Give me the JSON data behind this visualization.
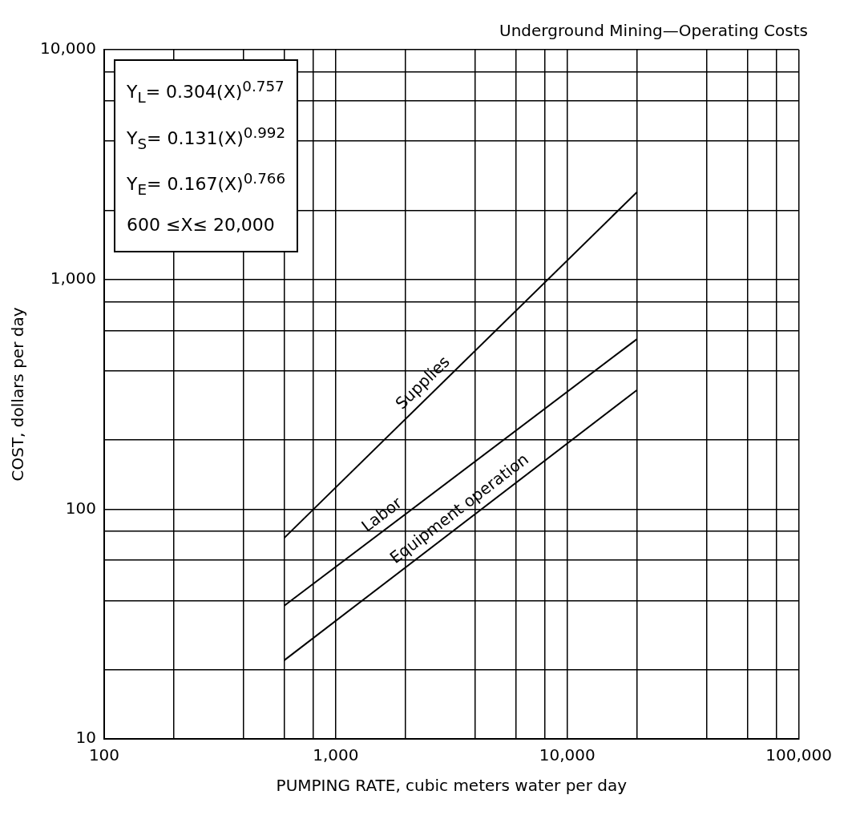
{
  "chart_data": {
    "type": "line",
    "title": "Underground Mining—Operating Costs",
    "xlabel": "PUMPING RATE, cubic meters water per day",
    "ylabel": "COST, dollars per day",
    "x": [
      600,
      20000
    ],
    "series": [
      {
        "name": "Supplies",
        "color": "#000000",
        "values": [
          75,
          2400
        ]
      },
      {
        "name": "Labor",
        "color": "#000000",
        "values": [
          38,
          550
        ]
      },
      {
        "name": "Equipment operation",
        "color": "#000000",
        "values": [
          22,
          330
        ]
      }
    ],
    "log": "xy",
    "xlim": [
      100,
      100000
    ],
    "ylim": [
      10,
      10000
    ],
    "xticks": [
      100,
      {
        "value": 200,
        "label": null
      },
      {
        "value": 400,
        "label": null
      },
      {
        "value": 600,
        "label": null
      },
      {
        "value": 800,
        "label": null
      },
      {
        "value": 1000,
        "label": "1,000"
      },
      {
        "value": 2000,
        "label": null
      },
      {
        "value": 4000,
        "label": null
      },
      {
        "value": 6000,
        "label": null
      },
      {
        "value": 8000,
        "label": null
      },
      {
        "value": 10000,
        "label": "10,000"
      },
      {
        "value": 20000,
        "label": null
      },
      {
        "value": 40000,
        "label": null
      },
      {
        "value": 60000,
        "label": null
      },
      {
        "value": 80000,
        "label": null
      },
      {
        "value": 100000,
        "label": "100,000"
      }
    ],
    "yticks": [
      10,
      {
        "value": 20,
        "label": null
      },
      {
        "value": 40,
        "label": null
      },
      {
        "value": 60,
        "label": null
      },
      {
        "value": 80,
        "label": null
      },
      100,
      {
        "value": 200,
        "label": null
      },
      {
        "value": 400,
        "label": null
      },
      {
        "value": 600,
        "label": null
      },
      {
        "value": 800,
        "label": null
      },
      {
        "value": 1000,
        "label": "1,000"
      },
      {
        "value": 2000,
        "label": null
      },
      {
        "value": 4000,
        "label": null
      },
      {
        "value": 6000,
        "label": null
      },
      {
        "value": 8000,
        "label": null
      },
      {
        "value": 10000,
        "label": "10,000"
      }
    ],
    "grid": true,
    "marker": "none",
    "line_style": "solid",
    "annotations": [
      "Y$_{L}$= 0.304(X)$^{0.757}$",
      "Y$_{S}$= 0.131(X)$^{0.992}$",
      "Y$_{E}$= 0.167(X)$^{0.766}$",
      "600 ≤X≤ 20,000"
    ]
  }
}
